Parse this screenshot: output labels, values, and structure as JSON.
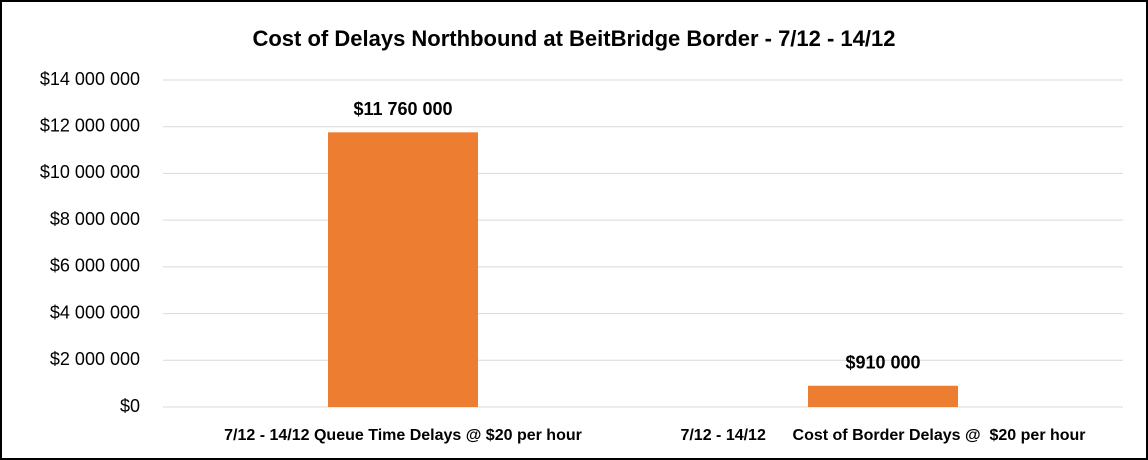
{
  "chart_data": {
    "type": "bar",
    "title": "Cost of Delays Northbound at BeitBridge Border - 7/12 - 14/12",
    "categories": [
      "7/12 - 14/12 Queue Time Delays @ $20 per hour",
      "7/12 - 14/12      Cost of Border Delays @  $20 per hour"
    ],
    "values": [
      11760000,
      910000
    ],
    "value_labels": [
      "$11 760 000",
      "$910 000"
    ],
    "color": "#ed7d31",
    "ylim": [
      0,
      14000000
    ],
    "yticks": [
      {
        "value": 0,
        "label": "$0"
      },
      {
        "value": 2000000,
        "label": "$2 000 000"
      },
      {
        "value": 4000000,
        "label": "$4 000 000"
      },
      {
        "value": 6000000,
        "label": "$6 000 000"
      },
      {
        "value": 8000000,
        "label": "$8 000 000"
      },
      {
        "value": 10000000,
        "label": "$10 000 000"
      },
      {
        "value": 12000000,
        "label": "$12 000 000"
      },
      {
        "value": 14000000,
        "label": "$14 000 000"
      }
    ],
    "grid": true
  }
}
